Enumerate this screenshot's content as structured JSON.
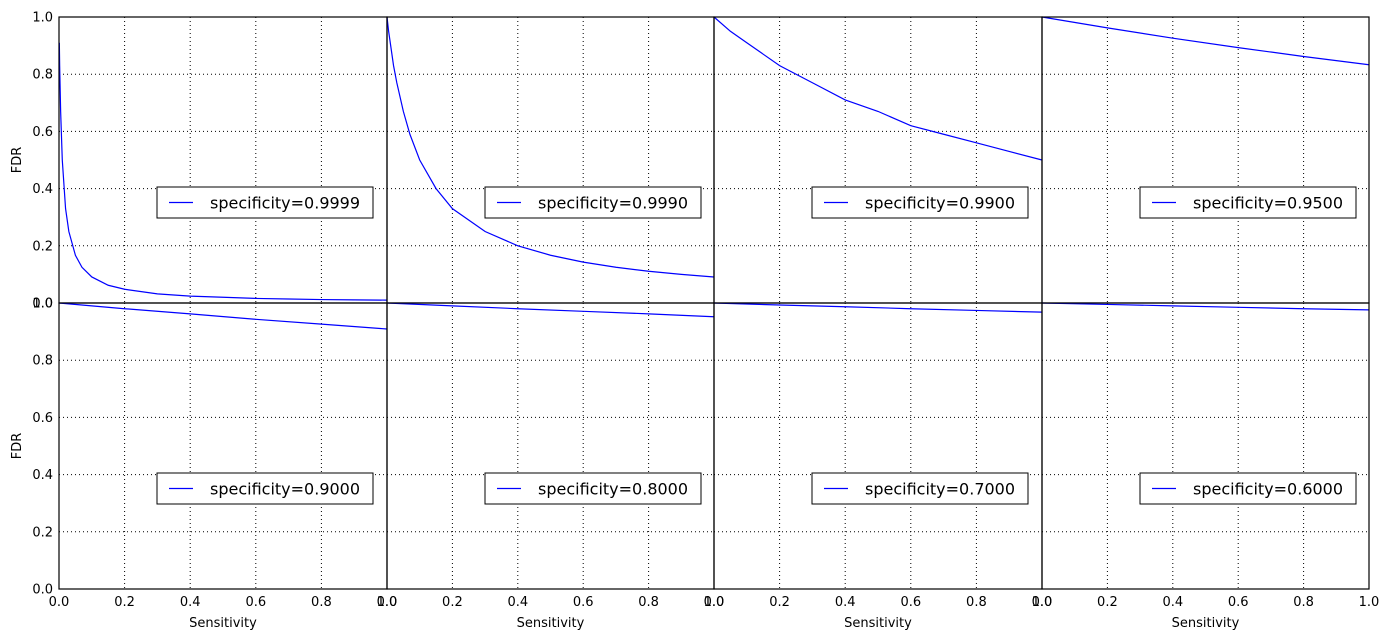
{
  "chart_data": {
    "type": "line",
    "grid": true,
    "shared_axes": {
      "xlim": [
        0.0,
        1.0
      ],
      "ylim": [
        0.0,
        1.0
      ],
      "xticks": [
        0.0,
        0.2,
        0.4,
        0.6,
        0.8,
        1.0
      ],
      "yticks": [
        0.0,
        0.2,
        0.4,
        0.6,
        0.8,
        1.0
      ],
      "x_tick_labels": [
        "0.0",
        "0.2",
        "0.4",
        "0.6",
        "0.8",
        "1.0"
      ],
      "y_tick_labels": [
        "0.0",
        "0.2",
        "0.4",
        "0.6",
        "0.8",
        "1.0"
      ],
      "xlabel": "Sensitivity",
      "ylabel": "FDR"
    },
    "colors": {
      "line": "#0000ff",
      "grid": "#000000",
      "axes": "#000000"
    },
    "legend_position": "center-right",
    "panels": [
      {
        "legend": "specificity=0.9999",
        "series": [
          {
            "name": "specificity=0.9999",
            "x": [
              0.001,
              0.002,
              0.005,
              0.01,
              0.02,
              0.03,
              0.05,
              0.07,
              0.1,
              0.15,
              0.2,
              0.3,
              0.4,
              0.5,
              0.6,
              0.7,
              0.8,
              0.9,
              1.0
            ],
            "y": [
              0.91,
              0.83,
              0.67,
              0.5,
              0.33,
              0.25,
              0.167,
              0.125,
              0.091,
              0.062,
              0.048,
              0.032,
              0.024,
              0.02,
              0.016,
              0.014,
              0.012,
              0.011,
              0.01
            ]
          }
        ]
      },
      {
        "legend": "specificity=0.9990",
        "series": [
          {
            "name": "specificity=0.9990",
            "x": [
              0.0,
              0.005,
              0.01,
              0.02,
              0.03,
              0.05,
              0.07,
              0.1,
              0.15,
              0.2,
              0.3,
              0.4,
              0.5,
              0.6,
              0.7,
              0.8,
              0.9,
              1.0
            ],
            "y": [
              1.0,
              0.95,
              0.91,
              0.83,
              0.77,
              0.67,
              0.59,
              0.5,
              0.4,
              0.33,
              0.25,
              0.2,
              0.167,
              0.143,
              0.125,
              0.111,
              0.1,
              0.091
            ]
          }
        ]
      },
      {
        "legend": "specificity=0.9900",
        "series": [
          {
            "name": "specificity=0.9900",
            "x": [
              0.0,
              0.05,
              0.1,
              0.15,
              0.2,
              0.3,
              0.4,
              0.5,
              0.6,
              0.7,
              0.8,
              0.9,
              1.0
            ],
            "y": [
              1.0,
              0.95,
              0.91,
              0.87,
              0.83,
              0.77,
              0.71,
              0.67,
              0.62,
              0.59,
              0.56,
              0.53,
              0.5
            ]
          }
        ]
      },
      {
        "legend": "specificity=0.9500",
        "series": [
          {
            "name": "specificity=0.9500",
            "x": [
              0.0,
              0.2,
              0.4,
              0.6,
              0.8,
              1.0
            ],
            "y": [
              1.0,
              0.962,
              0.926,
              0.893,
              0.862,
              0.833
            ]
          }
        ]
      },
      {
        "legend": "specificity=0.9000",
        "series": [
          {
            "name": "specificity=0.9000",
            "x": [
              0.0,
              0.2,
              0.4,
              0.6,
              0.8,
              1.0
            ],
            "y": [
              1.0,
              0.98,
              0.962,
              0.943,
              0.926,
              0.909
            ]
          }
        ]
      },
      {
        "legend": "specificity=0.8000",
        "series": [
          {
            "name": "specificity=0.8000",
            "x": [
              0.0,
              0.2,
              0.4,
              0.6,
              0.8,
              1.0
            ],
            "y": [
              1.0,
              0.99,
              0.98,
              0.971,
              0.962,
              0.952
            ]
          }
        ]
      },
      {
        "legend": "specificity=0.7000",
        "series": [
          {
            "name": "specificity=0.7000",
            "x": [
              0.0,
              0.2,
              0.4,
              0.6,
              0.8,
              1.0
            ],
            "y": [
              1.0,
              0.993,
              0.987,
              0.98,
              0.974,
              0.968
            ]
          }
        ]
      },
      {
        "legend": "specificity=0.6000",
        "series": [
          {
            "name": "specificity=0.6000",
            "x": [
              0.0,
              0.2,
              0.4,
              0.6,
              0.8,
              1.0
            ],
            "y": [
              1.0,
              0.995,
              0.99,
              0.985,
              0.98,
              0.976
            ]
          }
        ]
      }
    ]
  }
}
